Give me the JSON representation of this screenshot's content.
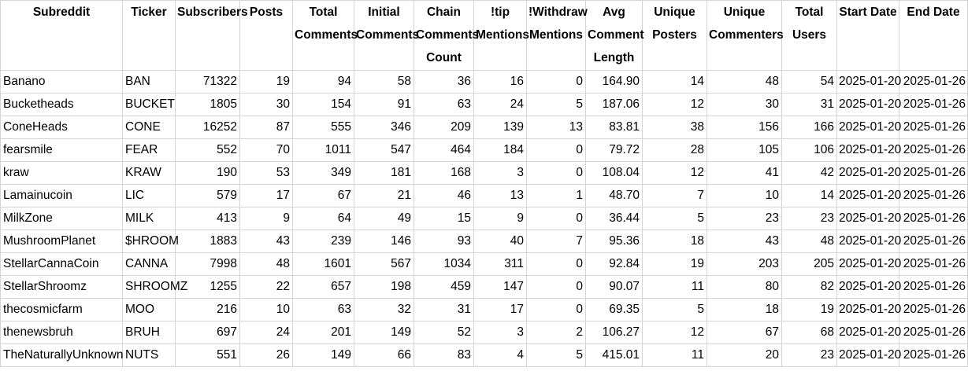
{
  "columns": [
    "Subreddit",
    "Ticker",
    "Subscribers",
    "Posts",
    "Total Comments",
    "Initial Comments",
    "Chain Comments Count",
    "!tip Mentions",
    "!Withdraw Mentions",
    "Avg Comment Length",
    "Unique Posters",
    "Unique Commenters",
    "Total Users",
    "Start Date",
    "End Date"
  ],
  "rows": [
    [
      "Banano",
      "BAN",
      "71322",
      "19",
      "94",
      "58",
      "36",
      "16",
      "0",
      "164.90",
      "14",
      "48",
      "54",
      "2025-01-20",
      "2025-01-26"
    ],
    [
      "Bucketheads",
      "BUCKET",
      "1805",
      "30",
      "154",
      "91",
      "63",
      "24",
      "5",
      "187.06",
      "12",
      "30",
      "31",
      "2025-01-20",
      "2025-01-26"
    ],
    [
      "ConeHeads",
      "CONE",
      "16252",
      "87",
      "555",
      "346",
      "209",
      "139",
      "13",
      "83.81",
      "38",
      "156",
      "166",
      "2025-01-20",
      "2025-01-26"
    ],
    [
      "fearsmile",
      "FEAR",
      "552",
      "70",
      "1011",
      "547",
      "464",
      "184",
      "0",
      "79.72",
      "28",
      "105",
      "106",
      "2025-01-20",
      "2025-01-26"
    ],
    [
      "kraw",
      "KRAW",
      "190",
      "53",
      "349",
      "181",
      "168",
      "3",
      "0",
      "108.04",
      "12",
      "41",
      "42",
      "2025-01-20",
      "2025-01-26"
    ],
    [
      "Lamainucoin",
      "LIC",
      "579",
      "17",
      "67",
      "21",
      "46",
      "13",
      "1",
      "48.70",
      "7",
      "10",
      "14",
      "2025-01-20",
      "2025-01-26"
    ],
    [
      "MilkZone",
      "MILK",
      "413",
      "9",
      "64",
      "49",
      "15",
      "9",
      "0",
      "36.44",
      "5",
      "23",
      "23",
      "2025-01-20",
      "2025-01-26"
    ],
    [
      "MushroomPlanet",
      "$HROOM",
      "1883",
      "43",
      "239",
      "146",
      "93",
      "40",
      "7",
      "95.36",
      "18",
      "43",
      "48",
      "2025-01-20",
      "2025-01-26"
    ],
    [
      "StellarCannaCoin",
      "CANNA",
      "7998",
      "48",
      "1601",
      "567",
      "1034",
      "311",
      "0",
      "92.84",
      "19",
      "203",
      "205",
      "2025-01-20",
      "2025-01-26"
    ],
    [
      "StellarShroomz",
      "SHROOMZ",
      "1255",
      "22",
      "657",
      "198",
      "459",
      "147",
      "0",
      "90.07",
      "11",
      "80",
      "82",
      "2025-01-20",
      "2025-01-26"
    ],
    [
      "thecosmicfarm",
      "MOO",
      "216",
      "10",
      "63",
      "32",
      "31",
      "17",
      "0",
      "69.35",
      "5",
      "18",
      "19",
      "2025-01-20",
      "2025-01-26"
    ],
    [
      "thenewsbruh",
      "BRUH",
      "697",
      "24",
      "201",
      "149",
      "52",
      "3",
      "2",
      "106.27",
      "12",
      "67",
      "68",
      "2025-01-20",
      "2025-01-26"
    ],
    [
      "TheNaturallyUnknown",
      "NUTS",
      "551",
      "26",
      "149",
      "66",
      "83",
      "4",
      "5",
      "415.01",
      "11",
      "20",
      "23",
      "2025-01-20",
      "2025-01-26"
    ]
  ]
}
